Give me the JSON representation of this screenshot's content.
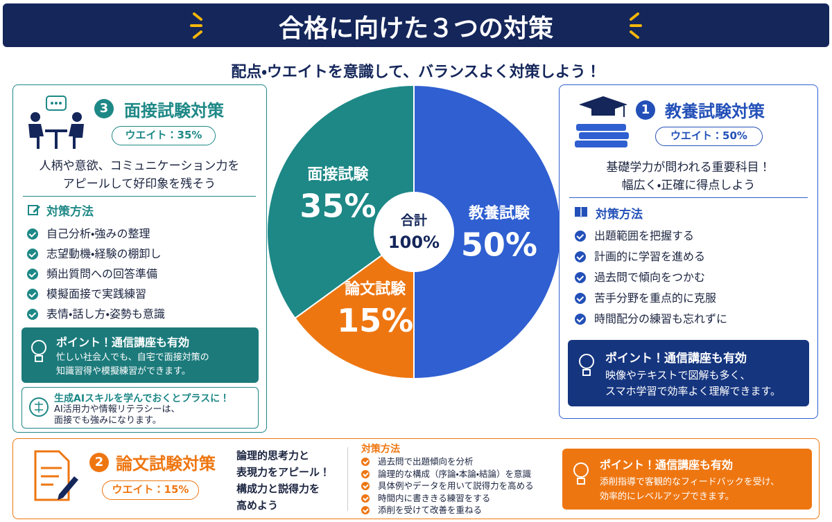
{
  "header": {
    "title": "合格に向けた３つの対策",
    "subtitle": "配点・ウエイトを意識して、バランスよく対策しよう！"
  },
  "chart_data": {
    "type": "pie",
    "categories": [
      "教養試験",
      "論文試験",
      "面接試験"
    ],
    "values": [
      50,
      15,
      35
    ],
    "value_labels": [
      "50%",
      "15%",
      "35%"
    ],
    "colors": [
      "#2f5fd0",
      "#ee7611",
      "#1d8886"
    ],
    "center_label": "合計",
    "total": 100,
    "total_label": "100%"
  },
  "interview": {
    "number": "3",
    "title": "面接試験対策",
    "weight": "ウエイト：35%",
    "lead": [
      "人柄や意欲、コミュニケーション力を",
      "アピールして好印象を残そう"
    ],
    "method_title": "対策方法",
    "methods": [
      "自己分析・強みの整理",
      "志望動機・経験の棚卸し",
      "頻出質問への回答準備",
      "模擬面接で実践練習",
      "表情・話し方・姿勢も意識"
    ],
    "point": {
      "title": "ポイント！通信講座も有効",
      "text": [
        "忙しい社会人でも、自宅で面接対策の",
        "知識習得や模擬練習ができます。"
      ]
    },
    "tip": {
      "title": "生成AIスキルを学んでおくとプラスに！",
      "text": [
        "AI活用力や情報リテラシーは、",
        "面接でも強みになります。"
      ]
    }
  },
  "general": {
    "number": "1",
    "title": "教養試験対策",
    "weight": "ウエイト：50%",
    "lead": [
      "基礎学力が問われる重要科目！",
      "幅広く・正確に得点しよう"
    ],
    "method_title": "対策方法",
    "methods": [
      "出題範囲を把握する",
      "計画的に学習を進める",
      "過去問で傾向をつかむ",
      "苦手分野を重点的に克服",
      "時間配分の練習も忘れずに"
    ],
    "point": {
      "title": "ポイント！通信講座も有効",
      "text": [
        "映像やテキストで図解も多く、",
        "スマホ学習で効率よく理解できます。"
      ]
    }
  },
  "essay": {
    "number": "2",
    "title": "論文試験対策",
    "weight": "ウエイト：15%",
    "lead": [
      "論理的思考力と",
      "表現力をアピール！",
      "構成力と説得力を",
      "高めよう"
    ],
    "method_title": "対策方法",
    "methods": [
      "過去問で出題傾向を分析",
      "論理的な構成（序論・本論・結論）を意識",
      "具体例やデータを用いて説得力を高める",
      "時間内に書ききる練習をする",
      "添削を受けて改善を重ねる"
    ],
    "point": {
      "title": "ポイント！通信講座も有効",
      "text": [
        "添削指導で客観的なフィードバックを受け、",
        "効率的にレベルアップできます。"
      ]
    }
  }
}
